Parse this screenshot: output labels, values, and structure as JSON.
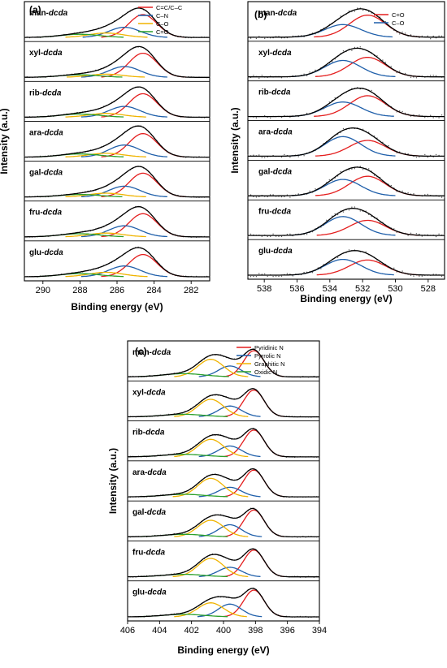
{
  "figure": {
    "y_axis_label": "Intensity (a.u.)",
    "x_axis_label": "Binding energy (eV)"
  },
  "colors": {
    "fit": "#000000",
    "raw": "#555555",
    "red": "#e41e1e",
    "blue": "#1f5faa",
    "yellow": "#f0b400",
    "green": "#2ca02c"
  },
  "chart_data": [
    {
      "panel": "(a)",
      "type": "line",
      "xlabel": "Binding energy (eV)",
      "ylabel": "Intensity (a.u.)",
      "xlim": [
        291,
        281
      ],
      "x_reversed": true,
      "xticks": [
        290,
        288,
        286,
        284,
        282
      ],
      "legend_position": "top-right",
      "samples": [
        "man-dcda",
        "xyl-dcda",
        "rib-dcda",
        "ara-dcda",
        "gal-dcda",
        "fru-dcda",
        "glu-dcda"
      ],
      "series": [
        {
          "name": "C=C/C–C",
          "color": "red",
          "center": 284.6,
          "fwhm": 1.8
        },
        {
          "name": "C–N",
          "color": "blue",
          "center": 285.6,
          "fwhm": 2.0
        },
        {
          "name": "C–O",
          "color": "yellow",
          "center": 286.6,
          "fwhm": 2.2
        },
        {
          "name": "C=O",
          "color": "green",
          "center": 288.0,
          "fwhm": 2.5
        }
      ],
      "relative_amplitudes": {
        "man-dcda": [
          0.72,
          0.32,
          0.14,
          0.1
        ],
        "xyl-dcda": [
          0.76,
          0.34,
          0.1,
          0.08
        ],
        "rib-dcda": [
          0.74,
          0.34,
          0.12,
          0.1
        ],
        "ara-dcda": [
          0.74,
          0.38,
          0.12,
          0.1
        ],
        "gal-dcda": [
          0.75,
          0.34,
          0.12,
          0.08
        ],
        "fru-dcda": [
          0.73,
          0.35,
          0.12,
          0.1
        ],
        "glu-dcda": [
          0.7,
          0.34,
          0.14,
          0.1
        ]
      }
    },
    {
      "panel": "(b)",
      "type": "line",
      "xlabel": "Binding energy (eV)",
      "ylabel": "Intensity (a.u.)",
      "xlim": [
        539,
        527
      ],
      "x_reversed": true,
      "xticks": [
        538,
        536,
        534,
        532,
        530,
        528
      ],
      "legend_position": "top-right",
      "samples": [
        "man-dcda",
        "xyl-dcda",
        "rib-dcda",
        "ara-dcda",
        "gal-dcda",
        "fru-dcda",
        "glu-dcda"
      ],
      "series": [
        {
          "name": "C=O",
          "color": "red",
          "center": 531.7,
          "fwhm": 2.6
        },
        {
          "name": "C–O",
          "color": "blue",
          "center": 533.2,
          "fwhm": 2.6
        }
      ],
      "relative_amplitudes": {
        "man-dcda": [
          0.7,
          0.4
        ],
        "xyl-dcda": [
          0.62,
          0.52
        ],
        "rib-dcda": [
          0.66,
          0.46
        ],
        "ara-dcda": [
          0.5,
          0.62
        ],
        "gal-dcda": [
          0.62,
          0.52
        ],
        "fru-dcda": [
          0.48,
          0.6
        ],
        "glu-dcda": [
          0.48,
          0.5
        ]
      }
    },
    {
      "panel": "(c)",
      "type": "line",
      "xlabel": "Binding energy (eV)",
      "ylabel": "Intensity (a.u.)",
      "xlim": [
        406,
        394
      ],
      "x_reversed": true,
      "xticks": [
        406,
        404,
        402,
        400,
        398,
        396,
        394
      ],
      "legend_position": "top-right",
      "samples": [
        "man-dcda",
        "xyl-dcda",
        "rib-dcda",
        "ara-dcda",
        "gal-dcda",
        "fru-dcda",
        "glu-dcda"
      ],
      "series": [
        {
          "name": "Pyridinic N",
          "color": "red",
          "center": 398.1,
          "fwhm": 1.5
        },
        {
          "name": "Pyrrolic N",
          "color": "blue",
          "center": 399.6,
          "fwhm": 1.7
        },
        {
          "name": "Graphitic N",
          "color": "yellow",
          "center": 400.8,
          "fwhm": 1.9
        },
        {
          "name": "Oxidic N",
          "color": "green",
          "center": 402.5,
          "fwhm": 3.0
        }
      ],
      "relative_amplitudes": {
        "man-dcda": [
          0.82,
          0.34,
          0.55,
          0.1
        ],
        "xyl-dcda": [
          0.84,
          0.34,
          0.55,
          0.08
        ],
        "rib-dcda": [
          0.84,
          0.34,
          0.55,
          0.08
        ],
        "ara-dcda": [
          0.84,
          0.3,
          0.58,
          0.08
        ],
        "gal-dcda": [
          0.84,
          0.38,
          0.52,
          0.08
        ],
        "fru-dcda": [
          0.84,
          0.3,
          0.58,
          0.08
        ],
        "glu-dcda": [
          0.84,
          0.4,
          0.44,
          0.08
        ]
      }
    }
  ]
}
